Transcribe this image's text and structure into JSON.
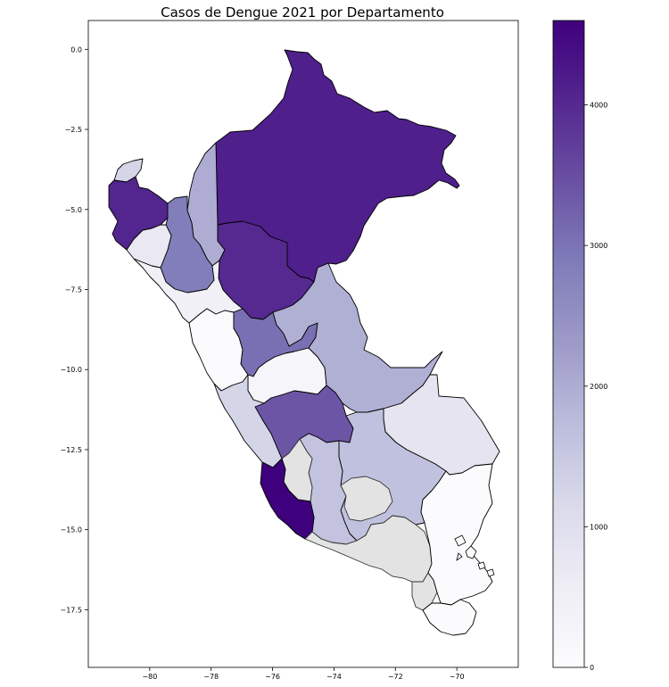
{
  "chart_data": {
    "type": "choropleth",
    "title": "Casos de Dengue 2021 por Departamento",
    "xlabel": "",
    "ylabel": "",
    "x_ticks": [
      -80,
      -78,
      -76,
      -74,
      -72,
      -70
    ],
    "y_ticks": [
      0.0,
      -2.5,
      -5.0,
      -7.5,
      -10.0,
      -12.5,
      -15.0,
      -17.5
    ],
    "x_tick_labels": [
      "−80",
      "−78",
      "−76",
      "−74",
      "−72",
      "−70"
    ],
    "y_tick_labels": [
      "0.0",
      "−2.5",
      "−5.0",
      "−7.5",
      "−10.0",
      "−12.5",
      "−15.0",
      "−17.5"
    ],
    "xlim": [
      -82.0,
      -68.0
    ],
    "ylim": [
      -19.3,
      0.9
    ],
    "colorbar": {
      "cmap": "Purples",
      "min": 0,
      "max": 4600,
      "ticks": [
        0,
        1000,
        2000,
        3000,
        4000
      ],
      "tick_labels": [
        "0",
        "1000",
        "2000",
        "3000",
        "4000"
      ],
      "low_color": "#fcfbfd",
      "high_color": "#3f007d"
    },
    "missing_color": "#e3e3e3",
    "regions": [
      {
        "name": "Loreto",
        "value": 4150
      },
      {
        "name": "San Martín",
        "value": 4000
      },
      {
        "name": "Piura",
        "value": 4050
      },
      {
        "name": "Ica",
        "value": 4600
      },
      {
        "name": "Junín",
        "value": 3400
      },
      {
        "name": "Huánuco",
        "value": 3050
      },
      {
        "name": "Cajamarca",
        "value": 2850
      },
      {
        "name": "Amazonas",
        "value": 2000
      },
      {
        "name": "Ucayali",
        "value": 1950
      },
      {
        "name": "Cusco",
        "value": 1650
      },
      {
        "name": "Ayacucho",
        "value": 1600
      },
      {
        "name": "Lima",
        "value": 1250
      },
      {
        "name": "Tumbes",
        "value": 1250
      },
      {
        "name": "Madre de Dios",
        "value": 850
      },
      {
        "name": "Lambayeque",
        "value": 700
      },
      {
        "name": "La Libertad",
        "value": 450
      },
      {
        "name": "Pasco",
        "value": 250
      },
      {
        "name": "Ancash",
        "value": 50
      },
      {
        "name": "Puno",
        "value": 50
      },
      {
        "name": "Tacna",
        "value": 50
      },
      {
        "name": "Huancavelica",
        "value": null
      },
      {
        "name": "Apurímac",
        "value": null
      },
      {
        "name": "Arequipa",
        "value": null
      },
      {
        "name": "Moquegua",
        "value": null
      }
    ]
  }
}
